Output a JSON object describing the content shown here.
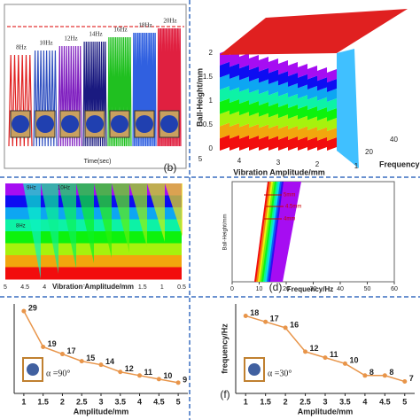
{
  "chart_data": [
    {
      "type": "signal",
      "annotations": [
        "8Hz",
        "10Hz",
        "12Hz",
        "14Hz",
        "16Hz",
        "18Hz",
        "20Hz"
      ],
      "x_label": "Time(sec)",
      "colors": [
        "#e02020",
        "#3050c0",
        "#8020c0",
        "#1a1a80",
        "#20c020",
        "#3060e0",
        "#e02040"
      ]
    },
    {
      "type": "surface",
      "panel_label": "(b)",
      "z_label": "Ball-Height/mm",
      "x_label": "Vibration Amplitude/mm",
      "y_label": "Frequency",
      "zticks": [
        0,
        0.5,
        1,
        1.5,
        2
      ],
      "xticks": [
        5,
        4,
        3,
        2,
        1
      ],
      "yticks": [
        20,
        40
      ]
    },
    {
      "type": "contour",
      "x_label": "Vibration Amplitude/mm",
      "xticks": [
        5,
        4.5,
        4,
        3.5,
        3,
        2.5,
        2,
        1.5,
        1,
        0.5
      ],
      "annotations": [
        "9Hz",
        "10Hz",
        "8Hz"
      ]
    },
    {
      "type": "curve",
      "panel_label": "(d)",
      "x_label": "Frequency/Hz",
      "y_label": "Ball-Height/mm",
      "xlim": [
        0,
        60
      ],
      "xticks": [
        0,
        10,
        20,
        30,
        40,
        50,
        60
      ],
      "annotations": [
        "5mm",
        "4.5mm",
        "4mm"
      ]
    },
    {
      "type": "line",
      "x_label": "Amplitude/mm",
      "annotation": "α =90°",
      "x": [
        1,
        1.5,
        2,
        2.5,
        3,
        3.5,
        4,
        4.5,
        5
      ],
      "xlim": [
        0.75,
        5.25
      ],
      "xticks": [
        1,
        1.5,
        2,
        2.5,
        3,
        3.5,
        4,
        4.5,
        5
      ],
      "ylim": [
        6,
        31
      ],
      "color": "#e8954a",
      "values": [
        29,
        19,
        17,
        15,
        14,
        12,
        11,
        10,
        9
      ]
    },
    {
      "type": "line",
      "panel_label": "(f)",
      "x_label": "Amplitude/mm",
      "y_label": "frequency/Hz",
      "annotation": "α =30°",
      "x": [
        1,
        1.5,
        2,
        2.5,
        3,
        3.5,
        4,
        4.5,
        5
      ],
      "xlim": [
        0.75,
        5.25
      ],
      "xticks": [
        1,
        1.5,
        2,
        2.5,
        3,
        3.5,
        4,
        4.5,
        5
      ],
      "ylim": [
        5,
        20
      ],
      "color": "#e8954a",
      "values": [
        18,
        17,
        16,
        12,
        11,
        10,
        8,
        8,
        7
      ]
    }
  ]
}
